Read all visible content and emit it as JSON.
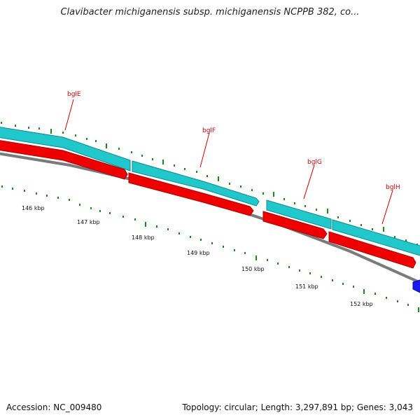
{
  "title": "Clavibacter michiganensis subsp. michiganensis NCPPB 382, co...",
  "footer": {
    "accession": "Accession: NC_009480",
    "summary": "Topology: circular; Length: 3,297,891 bp; Genes: 3,043"
  },
  "scale_ticks": [
    {
      "label": "146 kbp"
    },
    {
      "label": "147 kbp"
    },
    {
      "label": "148 kbp"
    },
    {
      "label": "149 kbp"
    },
    {
      "label": "150 kbp"
    },
    {
      "label": "151 kbp"
    },
    {
      "label": "152 kbp"
    }
  ],
  "genes": [
    {
      "name": "bglE",
      "strand": "forward"
    },
    {
      "name": "bglF",
      "strand": "forward"
    },
    {
      "name": "bglG",
      "strand": "forward"
    },
    {
      "name": "bglH",
      "strand": "forward"
    }
  ],
  "colors": {
    "cds_track": "#20c8cc",
    "gene_track": "#ee0000",
    "backbone": "#7a7a7a",
    "tick": "#1a8a1a",
    "gene_label": "#cc0000",
    "other_feature": "#1a1aee"
  }
}
